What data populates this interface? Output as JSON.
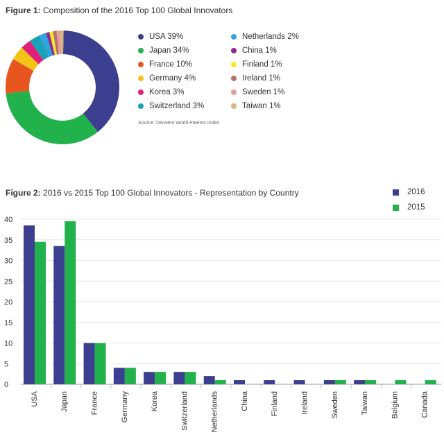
{
  "fig1": {
    "title_prefix": "Figure 1:",
    "title_rest": "Composition of the 2016 Top 100 Global Innovators",
    "source": "Source: Derwent World Patents Index"
  },
  "fig2": {
    "title_prefix": "Figure 2:",
    "title_rest": "2016 vs 2015 Top 100 Global Innovators - Representation by Country"
  },
  "chart_data": [
    {
      "type": "pie",
      "subtype": "donut",
      "title": "Composition of the 2016 Top 100 Global Innovators",
      "slices": [
        {
          "label": "USA 39%",
          "name": "USA",
          "value": 39,
          "color": "#3c3f8f"
        },
        {
          "label": "Japan 34%",
          "name": "Japan",
          "value": 34,
          "color": "#22b24c"
        },
        {
          "label": "France 10%",
          "name": "France",
          "value": 10,
          "color": "#e8541e"
        },
        {
          "label": "Germany 4%",
          "name": "Germany",
          "value": 4,
          "color": "#f3c416"
        },
        {
          "label": "Korea 3%",
          "name": "Korea",
          "value": 3,
          "color": "#e01f7a"
        },
        {
          "label": "Switzerland 3%",
          "name": "Switzerland",
          "value": 3,
          "color": "#1aa2b8"
        },
        {
          "label": "Netherlands 2%",
          "name": "Netherlands",
          "value": 2,
          "color": "#2ea3dc"
        },
        {
          "label": "China 1%",
          "name": "China",
          "value": 1,
          "color": "#8e2a8a"
        },
        {
          "label": "Finland 1%",
          "name": "Finland",
          "value": 1,
          "color": "#f2ea2b"
        },
        {
          "label": "Ireland 1%",
          "name": "Ireland",
          "value": 1,
          "color": "#b5706f"
        },
        {
          "label": "Sweden 1%",
          "name": "Sweden",
          "value": 1,
          "color": "#e89a9a"
        },
        {
          "label": "Taiwan 1%",
          "name": "Taiwan",
          "value": 1,
          "color": "#d9b77e"
        }
      ]
    },
    {
      "type": "bar",
      "title": "2016 vs 2015 Top 100 Global Innovators - Representation by Country",
      "categories": [
        "USA",
        "Japan",
        "France",
        "Germany",
        "Korea",
        "Switzerland",
        "Netherlands",
        "China",
        "Finland",
        "Ireland",
        "Sweden",
        "Taiwan",
        "Belgium",
        "Canada"
      ],
      "series": [
        {
          "name": "2016",
          "color": "#3c3f8f",
          "values": [
            38.5,
            33.5,
            10,
            4,
            3,
            3,
            2,
            1,
            1,
            1,
            1,
            1,
            0,
            0
          ]
        },
        {
          "name": "2015",
          "color": "#22b24c",
          "values": [
            34.5,
            39.5,
            10,
            4,
            3,
            3,
            1,
            0,
            0,
            0,
            1,
            1,
            1,
            1
          ]
        }
      ],
      "ylim": [
        0,
        40
      ],
      "yticks": [
        0,
        5,
        10,
        15,
        20,
        25,
        30,
        35,
        40
      ],
      "grid": true,
      "legend": "top-right"
    }
  ]
}
